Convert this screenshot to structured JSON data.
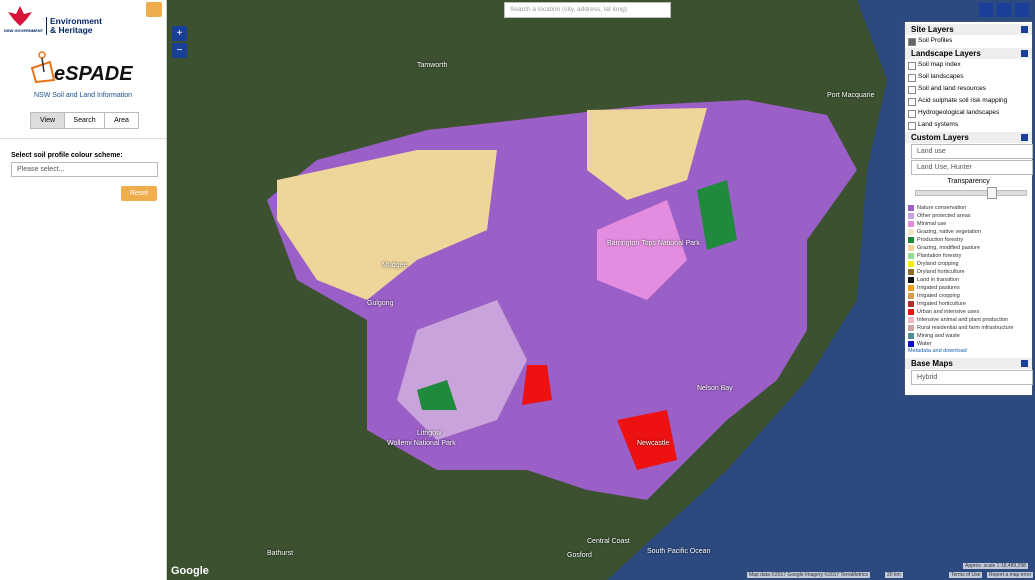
{
  "sidebar": {
    "logo_text": "NSW GOVERNMENT",
    "agency": "Environment & Heritage",
    "app_name": "eSPADE",
    "subtitle": "NSW Soil and Land Information",
    "tabs": [
      "View",
      "Search",
      "Area"
    ],
    "scheme_label": "Select soil profile colour scheme:",
    "scheme_select": "Please select...",
    "reset": "Reset"
  },
  "map": {
    "search_placeholder": "Search a location (city, address, lat long)",
    "zoom_in": "+",
    "zoom_out": "−",
    "places": [
      "Tamworth",
      "Port Macquarie",
      "Mudgee",
      "Gulgong",
      "Lithgow",
      "Bathurst",
      "Newcastle",
      "Gosford",
      "Central Coast",
      "South Pacific Ocean",
      "Nelson Bay",
      "Barrington Tops National Park",
      "Wollemi National Park"
    ],
    "google": "Google",
    "attribution": "Map data ©2017 Google Imagery ©2017 TerraMetrics",
    "scale": "20 km",
    "terms": "Terms of Use",
    "report": "Report a map error",
    "approx_scale": "Approx. scale 1:18,489,298"
  },
  "layers_panel": {
    "site_title": "Site Layers",
    "site_items": [
      "Soil Profiles"
    ],
    "landscape_title": "Landscape Layers",
    "landscape_items": [
      "Soil map index",
      "Soil landscapes",
      "Soil and land resources",
      "Acid sulphate soil risk mapping",
      "Hydrogeological landscapes",
      "Land systems"
    ],
    "custom_title": "Custom Layers",
    "custom_select": "Land use",
    "custom_select2": "Land Use, Hunter",
    "transparency": "Transparency",
    "legend": [
      {
        "label": "Nature conservation",
        "color": "#9b5fc8"
      },
      {
        "label": "Other protected areas",
        "color": "#c9a3dc"
      },
      {
        "label": "Minimal use",
        "color": "#e48de0"
      },
      {
        "label": "Grazing, native vegetation",
        "color": "#f3e6c1"
      },
      {
        "label": "Production forestry",
        "color": "#1f8a3c"
      },
      {
        "label": "Grazing, modified pasture",
        "color": "#eed59a"
      },
      {
        "label": "Plantation forestry",
        "color": "#8fe08f"
      },
      {
        "label": "Dryland cropping",
        "color": "#f4f000"
      },
      {
        "label": "Dryland horticulture",
        "color": "#8b6a2a"
      },
      {
        "label": "Land in transition",
        "color": "#111111"
      },
      {
        "label": "Irrigated pastures",
        "color": "#f0a020"
      },
      {
        "label": "Irrigated cropping",
        "color": "#d4a050"
      },
      {
        "label": "Irrigated horticulture",
        "color": "#b03030"
      },
      {
        "label": "Urban and intensive uses",
        "color": "#ee1111"
      },
      {
        "label": "Intensive animal and plant production",
        "color": "#f5b8c4"
      },
      {
        "label": "Rural residential and farm infrastructure",
        "color": "#c9a7a7"
      },
      {
        "label": "Mining and waste",
        "color": "#4f8f94"
      },
      {
        "label": "Water",
        "color": "#1010c0"
      }
    ],
    "metadata_link": "Metadata and download",
    "base_title": "Base Maps",
    "base_select": "Hybrid"
  }
}
